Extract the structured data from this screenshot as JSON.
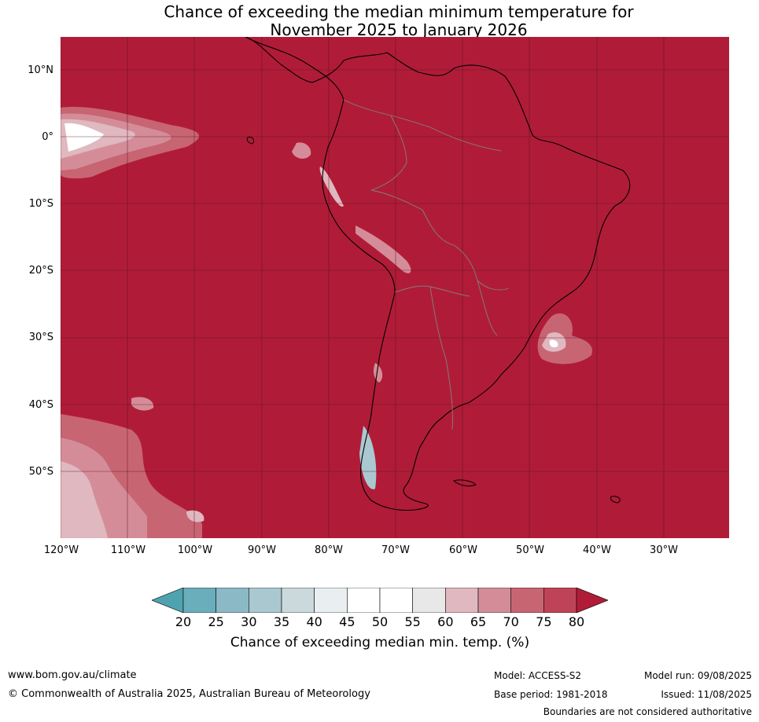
{
  "title": {
    "line1": "Chance of exceeding the median minimum temperature for",
    "line2": "November 2025 to January 2026"
  },
  "colors": {
    "ocean_above_80": "#b01c38",
    "coastline": "#000000",
    "border": "#808080",
    "grid": "#5a1020"
  },
  "lat_labels": [
    "10°N",
    "0°",
    "10°S",
    "20°S",
    "30°S",
    "40°S",
    "50°S"
  ],
  "lon_labels": [
    "120°W",
    "110°W",
    "100°W",
    "90°W",
    "80°W",
    "70°W",
    "60°W",
    "50°W",
    "40°W",
    "30°W"
  ],
  "colorbar": {
    "ticks": [
      "20",
      "25",
      "30",
      "35",
      "40",
      "45",
      "50",
      "55",
      "60",
      "65",
      "70",
      "75",
      "80"
    ],
    "colors": [
      "#4fa3b0",
      "#6aaebb",
      "#8bb9c5",
      "#aac8cf",
      "#cbd9dd",
      "#e9eff1",
      "#ffffff",
      "#ffffff",
      "#e8e8e8",
      "#e0b8bf",
      "#d48d98",
      "#c86573",
      "#be4357",
      "#b01c38"
    ],
    "label": "Chance of exceeding median min. temp. (%)"
  },
  "footer": {
    "website": "www.bom.gov.au/climate",
    "copyright": "© Commonwealth of Australia 2025, Australian Bureau of Meteorology",
    "model": "Model: ACCESS-S2",
    "base_period": "Base period: 1981-2018",
    "model_run": "Model run: 09/08/2025",
    "issued": "Issued: 11/08/2025",
    "disclaimer": "Boundaries are not considered authoritative"
  }
}
